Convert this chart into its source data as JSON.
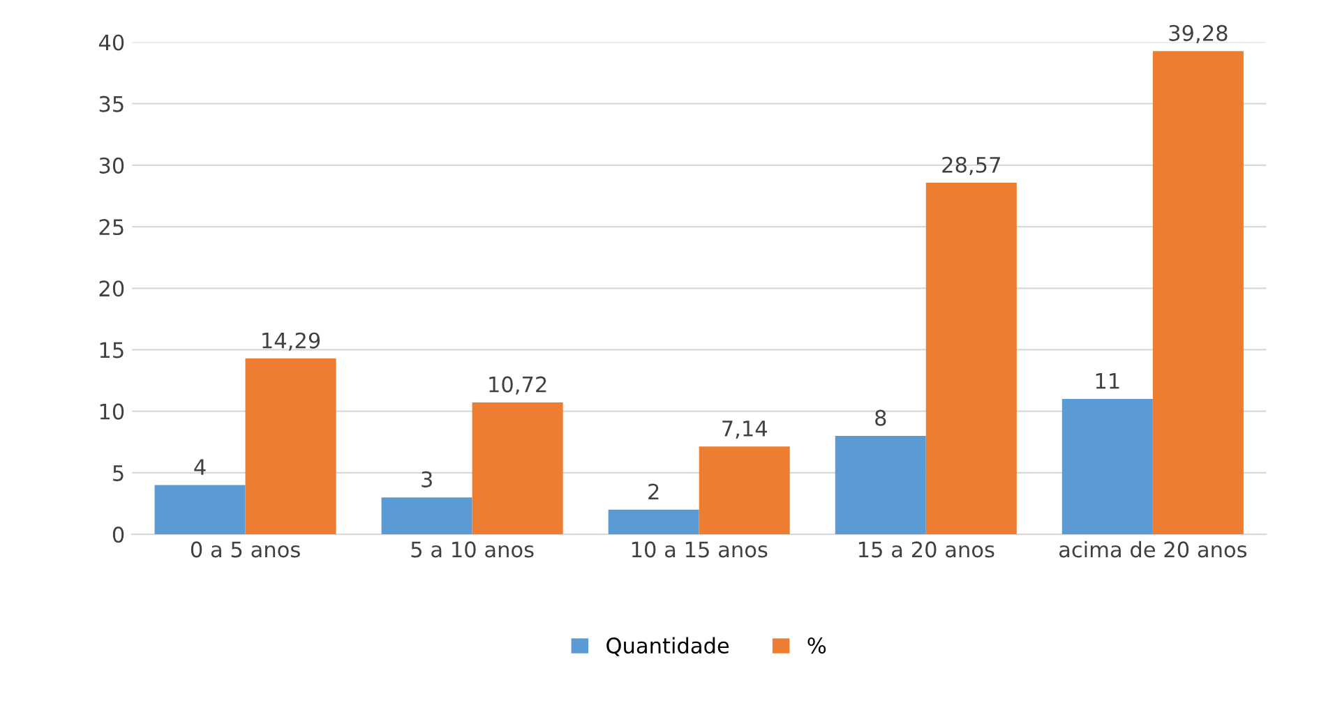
{
  "chart_data": {
    "type": "bar",
    "categories": [
      "0 a 5 anos",
      "5 a 10 anos",
      "10 a 15 anos",
      "15 a 20 anos",
      "acima de 20 anos"
    ],
    "series": [
      {
        "name": "Quantidade",
        "color": "#5b9bd5",
        "values": [
          4,
          3,
          2,
          8,
          11
        ],
        "value_labels": [
          "4",
          "3",
          "2",
          "8",
          "11"
        ]
      },
      {
        "name": "%",
        "color": "#ed7d31",
        "values": [
          14.29,
          10.72,
          7.14,
          28.57,
          39.28
        ],
        "value_labels": [
          "14,29",
          "10,72",
          "7,14",
          "28,57",
          "39,28"
        ]
      }
    ],
    "ylim": [
      0,
      40
    ],
    "yticks": [
      0,
      5,
      10,
      15,
      20,
      25,
      30,
      35,
      40
    ],
    "grid": "y",
    "legend": "bottom"
  }
}
